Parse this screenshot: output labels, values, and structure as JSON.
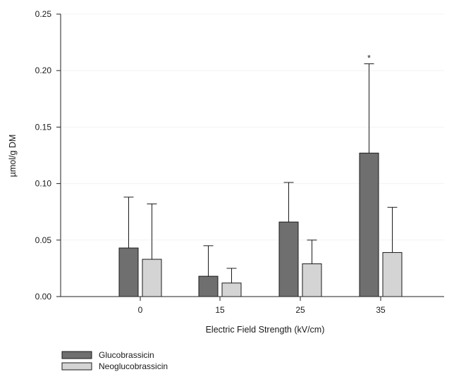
{
  "chart_data": {
    "type": "bar",
    "xlabel": "Electric Field Strength (kV/cm)",
    "ylabel": "µmol/g DM",
    "ylim": [
      0,
      0.25
    ],
    "yticks": [
      "0.00",
      "0.05",
      "0.10",
      "0.15",
      "0.20",
      "0.25"
    ],
    "categories": [
      "0",
      "15",
      "25",
      "35"
    ],
    "series": [
      {
        "name": "Glucobrassicin",
        "color": "#6f6f6f",
        "values": [
          0.043,
          0.018,
          0.066,
          0.127
        ],
        "error_upper": [
          0.088,
          0.045,
          0.101,
          0.206
        ]
      },
      {
        "name": "Neoglucobrassicin",
        "color": "#d4d4d4",
        "values": [
          0.033,
          0.012,
          0.029,
          0.039
        ],
        "error_upper": [
          0.082,
          0.025,
          0.05,
          0.079
        ]
      }
    ],
    "annotations": [
      {
        "text": "*",
        "category": "35",
        "series": "Glucobrassicin"
      }
    ],
    "grid": "horizontal, very faint",
    "legend": "bottom-left"
  }
}
